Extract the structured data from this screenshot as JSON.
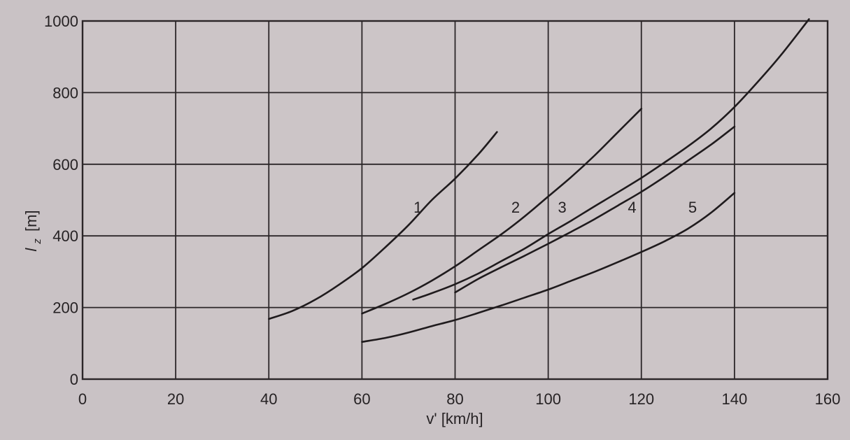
{
  "chart_data": {
    "type": "line",
    "xlabel": "v' [km/h]",
    "ylabel": "l_z [m]",
    "ylabel_main": "l",
    "ylabel_sub": "z",
    "ylabel_unit": "[m]",
    "xlim": [
      0,
      160
    ],
    "ylim": [
      0,
      1000
    ],
    "x_ticks": [
      0,
      20,
      40,
      60,
      80,
      100,
      120,
      140,
      160
    ],
    "y_ticks": [
      0,
      200,
      400,
      600,
      800,
      1000
    ],
    "x_tick_labels": [
      "0",
      "20",
      "40",
      "60",
      "80",
      "100",
      "120",
      "140",
      "160"
    ],
    "y_tick_labels": [
      "0",
      "200",
      "400",
      "600",
      "800",
      "1000"
    ],
    "grid": true,
    "legend": "none",
    "series": [
      {
        "name": "1",
        "label_at": [
          72,
          480
        ],
        "x": [
          40,
          45,
          50,
          55,
          60,
          65,
          70,
          75,
          80,
          85,
          89
        ],
        "y": [
          168,
          190,
          222,
          263,
          310,
          368,
          430,
          500,
          560,
          628,
          690
        ]
      },
      {
        "name": "2",
        "label_at": [
          93,
          480
        ],
        "x": [
          60,
          65,
          70,
          75,
          80,
          85,
          90,
          95,
          100,
          105,
          110,
          115,
          120
        ],
        "y": [
          183,
          210,
          240,
          275,
          315,
          360,
          405,
          455,
          510,
          565,
          625,
          690,
          755
        ]
      },
      {
        "name": "3",
        "label_at": [
          103,
          480
        ],
        "x": [
          71,
          75,
          80,
          85,
          90,
          95,
          100,
          105,
          110,
          115,
          120,
          125,
          130,
          135,
          140,
          145,
          150,
          156
        ],
        "y": [
          222,
          240,
          265,
          295,
          330,
          365,
          405,
          443,
          483,
          522,
          562,
          605,
          650,
          700,
          760,
          830,
          905,
          1005
        ]
      },
      {
        "name": "4",
        "label_at": [
          118,
          480
        ],
        "x": [
          80,
          85,
          90,
          95,
          100,
          105,
          110,
          115,
          120,
          125,
          130,
          135,
          140
        ],
        "y": [
          242,
          280,
          313,
          345,
          378,
          412,
          447,
          485,
          523,
          565,
          610,
          655,
          705
        ]
      },
      {
        "name": "5",
        "label_at": [
          131,
          480
        ],
        "x": [
          60,
          65,
          70,
          75,
          80,
          85,
          90,
          95,
          100,
          105,
          110,
          115,
          120,
          125,
          130,
          135,
          140
        ],
        "y": [
          104,
          115,
          130,
          148,
          165,
          185,
          206,
          228,
          250,
          275,
          300,
          327,
          355,
          385,
          420,
          465,
          520
        ]
      }
    ]
  }
}
